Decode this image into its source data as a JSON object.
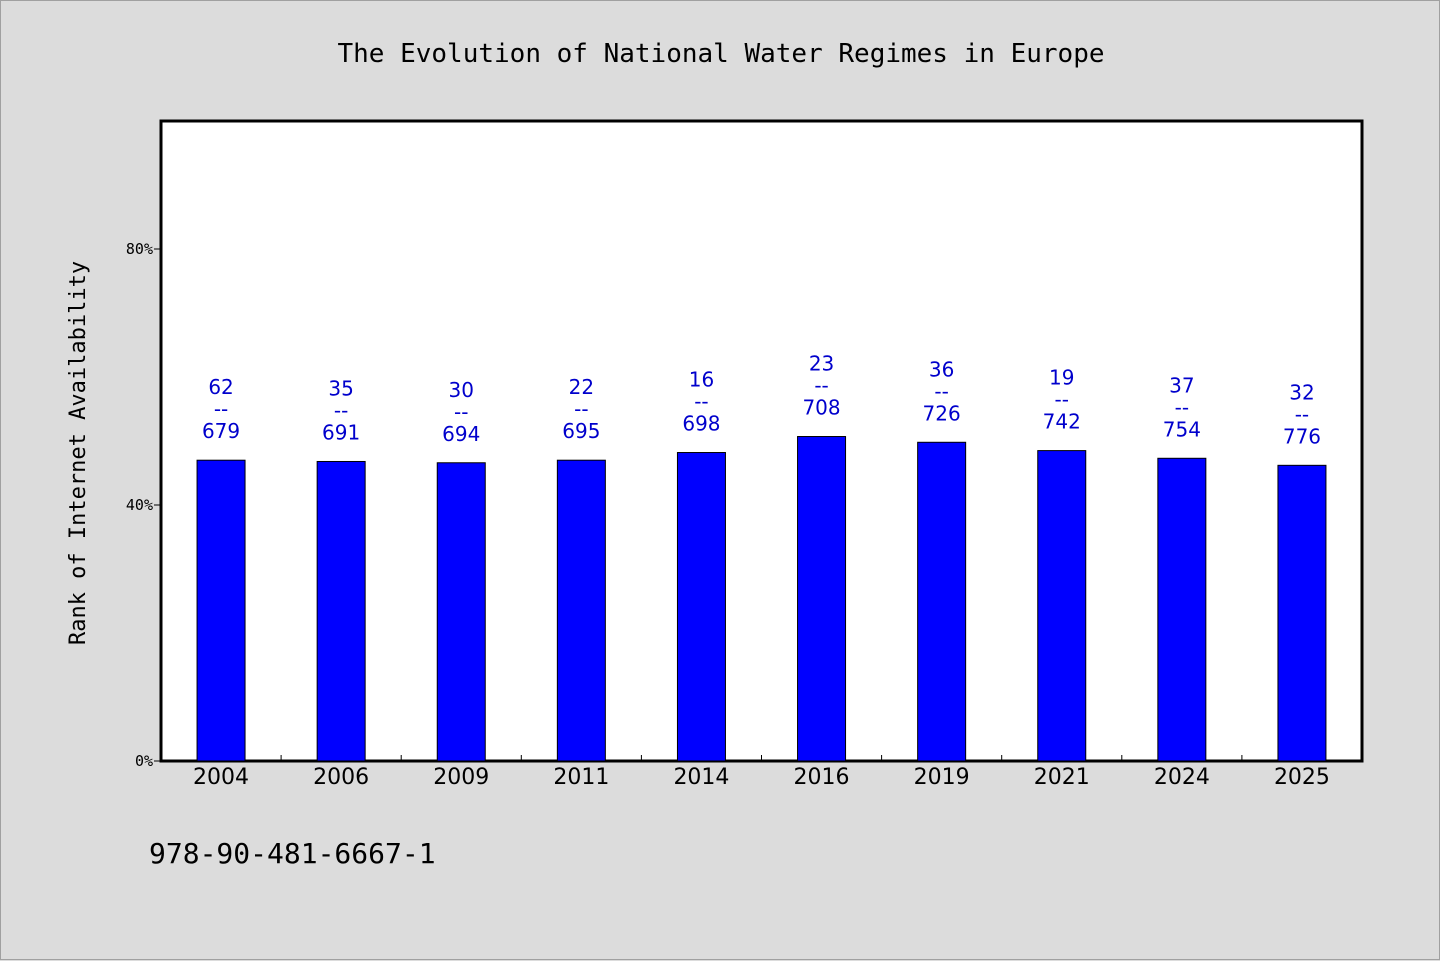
{
  "chart_data": {
    "type": "bar",
    "title": "The Evolution of National Water Regimes in Europe",
    "xlabel": "",
    "ylabel": "Rank of Internet Availability",
    "ylim": [
      0,
      100
    ],
    "yticks": [
      0,
      40,
      80
    ],
    "ytick_labels": [
      "0%",
      "40%",
      "80%"
    ],
    "categories": [
      "2004",
      "2006",
      "2009",
      "2011",
      "2014",
      "2016",
      "2019",
      "2021",
      "2024",
      "2025"
    ],
    "values": [
      47.0,
      46.8,
      46.6,
      47.0,
      48.2,
      50.7,
      49.8,
      48.5,
      47.3,
      46.2
    ],
    "labels": [
      {
        "top": "62",
        "sep": "--",
        "bottom": "679"
      },
      {
        "top": "35",
        "sep": "--",
        "bottom": "691"
      },
      {
        "top": "30",
        "sep": "--",
        "bottom": "694"
      },
      {
        "top": "22",
        "sep": "--",
        "bottom": "695"
      },
      {
        "top": "16",
        "sep": "--",
        "bottom": "698"
      },
      {
        "top": "23",
        "sep": "--",
        "bottom": "708"
      },
      {
        "top": "36",
        "sep": "--",
        "bottom": "726"
      },
      {
        "top": "19",
        "sep": "--",
        "bottom": "742"
      },
      {
        "top": "37",
        "sep": "--",
        "bottom": "754"
      },
      {
        "top": "32",
        "sep": "--",
        "bottom": "776"
      }
    ],
    "bar_color": "#0000ff",
    "label_color": "#0000cc",
    "grid": false,
    "legend": "none"
  },
  "footer": {
    "text": "978-90-481-6667-1"
  }
}
